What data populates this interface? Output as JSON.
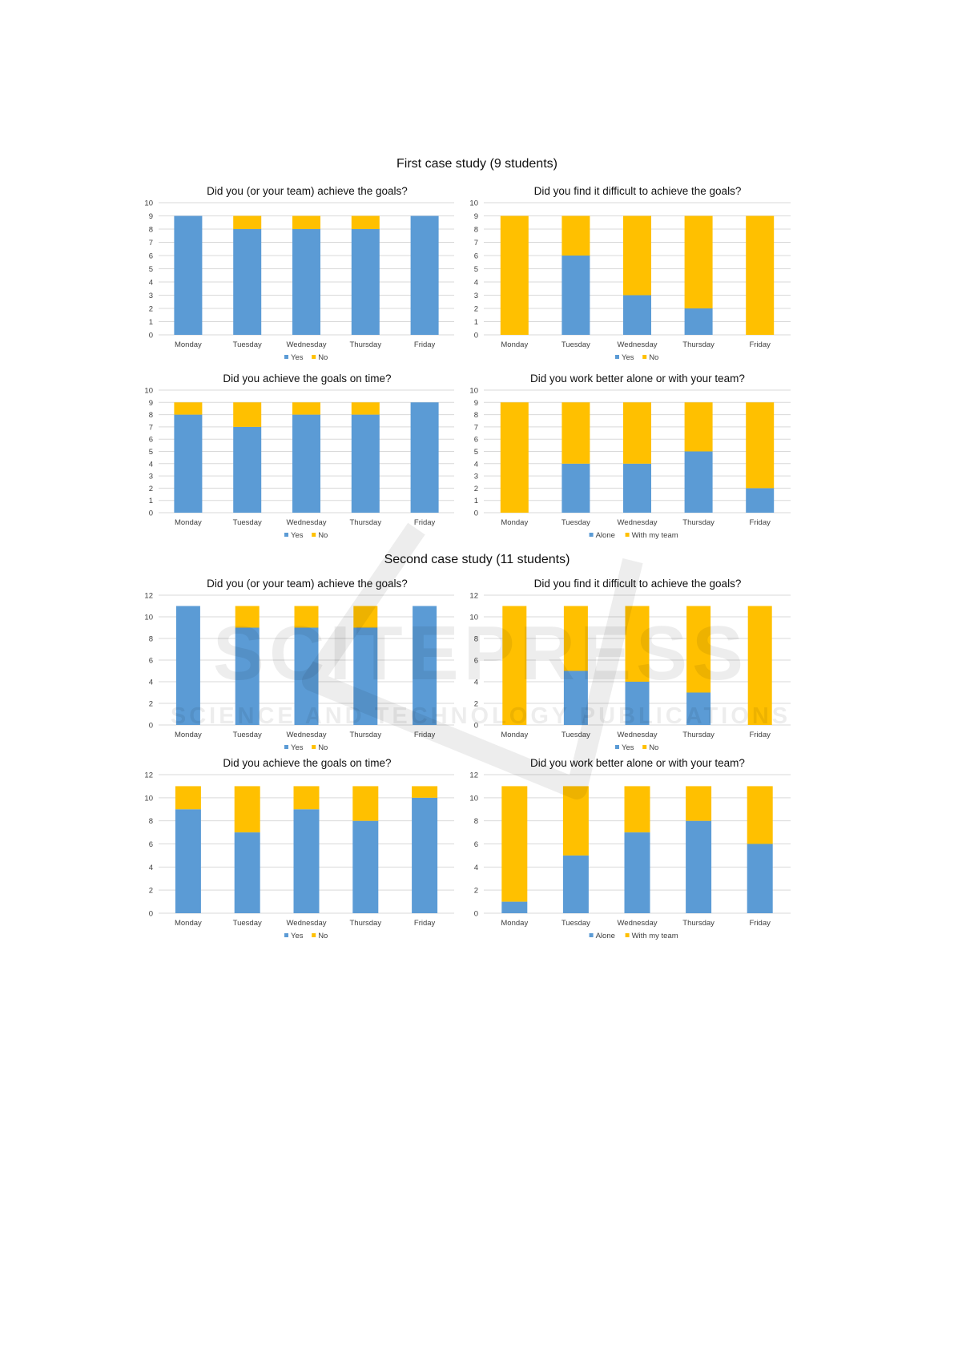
{
  "sections": [
    {
      "title": "First case study (9 students)"
    },
    {
      "title": "Second case study (11 students)"
    }
  ],
  "watermark": {
    "main": "SCITEPRESS",
    "sub": "SCIENCE AND TECHNOLOGY PUBLICATIONS"
  },
  "colors": {
    "yes": "#5B9BD5",
    "no": "#FFC000",
    "grid": "#D9D9D9",
    "axis_text": "#404040"
  },
  "chart_data": [
    {
      "type": "bar",
      "stacked": true,
      "title": "Did you (or your team) achieve the goals?",
      "categories": [
        "Monday",
        "Tuesday",
        "Wednesday",
        "Thursday",
        "Friday"
      ],
      "ylim": [
        0,
        10
      ],
      "yticks": [
        0,
        1,
        2,
        3,
        4,
        5,
        6,
        7,
        8,
        9,
        10
      ],
      "grid": true,
      "legend": "bottom",
      "series": [
        {
          "name": "Yes",
          "color": "#5B9BD5",
          "values": [
            9,
            8,
            8,
            8,
            9
          ]
        },
        {
          "name": "No",
          "color": "#FFC000",
          "values": [
            0,
            1,
            1,
            1,
            0
          ]
        }
      ]
    },
    {
      "type": "bar",
      "stacked": true,
      "title": "Did you find it difficult to achieve the goals?",
      "categories": [
        "Monday",
        "Tuesday",
        "Wednesday",
        "Thursday",
        "Friday"
      ],
      "ylim": [
        0,
        10
      ],
      "yticks": [
        0,
        1,
        2,
        3,
        4,
        5,
        6,
        7,
        8,
        9,
        10
      ],
      "grid": true,
      "legend": "bottom",
      "series": [
        {
          "name": "Yes",
          "color": "#5B9BD5",
          "values": [
            0,
            6,
            3,
            2,
            0
          ]
        },
        {
          "name": "No",
          "color": "#FFC000",
          "values": [
            9,
            3,
            6,
            7,
            9
          ]
        }
      ]
    },
    {
      "type": "bar",
      "stacked": true,
      "title": "Did you achieve the goals on time?",
      "categories": [
        "Monday",
        "Tuesday",
        "Wednesday",
        "Thursday",
        "Friday"
      ],
      "ylim": [
        0,
        10
      ],
      "yticks": [
        0,
        1,
        2,
        3,
        4,
        5,
        6,
        7,
        8,
        9,
        10
      ],
      "grid": true,
      "legend": "bottom",
      "series": [
        {
          "name": "Yes",
          "color": "#5B9BD5",
          "values": [
            8,
            7,
            8,
            8,
            9
          ]
        },
        {
          "name": "No",
          "color": "#FFC000",
          "values": [
            1,
            2,
            1,
            1,
            0
          ]
        }
      ]
    },
    {
      "type": "bar",
      "stacked": true,
      "title": "Did you work better alone or with your team?",
      "categories": [
        "Monday",
        "Tuesday",
        "Wednesday",
        "Thursday",
        "Friday"
      ],
      "ylim": [
        0,
        10
      ],
      "yticks": [
        0,
        1,
        2,
        3,
        4,
        5,
        6,
        7,
        8,
        9,
        10
      ],
      "grid": true,
      "legend": "bottom",
      "series": [
        {
          "name": "Alone",
          "color": "#5B9BD5",
          "values": [
            0,
            4,
            4,
            5,
            2
          ]
        },
        {
          "name": "With my team",
          "color": "#FFC000",
          "values": [
            9,
            5,
            5,
            4,
            7
          ]
        }
      ]
    },
    {
      "type": "bar",
      "stacked": true,
      "title": "Did you (or your team) achieve the goals?",
      "categories": [
        "Monday",
        "Tuesday",
        "Wednesday",
        "Thursday",
        "Friday"
      ],
      "ylim": [
        0,
        12
      ],
      "yticks": [
        0,
        2,
        4,
        6,
        8,
        10,
        12
      ],
      "grid": true,
      "legend": "bottom",
      "series": [
        {
          "name": "Yes",
          "color": "#5B9BD5",
          "values": [
            11,
            9,
            9,
            9,
            11
          ]
        },
        {
          "name": "No",
          "color": "#FFC000",
          "values": [
            0,
            2,
            2,
            2,
            0
          ]
        }
      ]
    },
    {
      "type": "bar",
      "stacked": true,
      "title": "Did you find it difficult to achieve the goals?",
      "categories": [
        "Monday",
        "Tuesday",
        "Wednesday",
        "Thursday",
        "Friday"
      ],
      "ylim": [
        0,
        12
      ],
      "yticks": [
        0,
        2,
        4,
        6,
        8,
        10,
        12
      ],
      "grid": true,
      "legend": "bottom",
      "series": [
        {
          "name": "Yes",
          "color": "#5B9BD5",
          "values": [
            0,
            5,
            4,
            3,
            0
          ]
        },
        {
          "name": "No",
          "color": "#FFC000",
          "values": [
            11,
            6,
            7,
            8,
            11
          ]
        }
      ]
    },
    {
      "type": "bar",
      "stacked": true,
      "title": "Did you achieve the goals on time?",
      "categories": [
        "Monday",
        "Tuesday",
        "Wednesday",
        "Thursday",
        "Friday"
      ],
      "ylim": [
        0,
        12
      ],
      "yticks": [
        0,
        2,
        4,
        6,
        8,
        10,
        12
      ],
      "grid": true,
      "legend": "bottom",
      "series": [
        {
          "name": "Yes",
          "color": "#5B9BD5",
          "values": [
            9,
            7,
            9,
            8,
            10
          ]
        },
        {
          "name": "No",
          "color": "#FFC000",
          "values": [
            2,
            4,
            2,
            3,
            1
          ]
        }
      ]
    },
    {
      "type": "bar",
      "stacked": true,
      "title": "Did you work better alone or with your team?",
      "categories": [
        "Monday",
        "Tuesday",
        "Wednesday",
        "Thursday",
        "Friday"
      ],
      "ylim": [
        0,
        12
      ],
      "yticks": [
        0,
        2,
        4,
        6,
        8,
        10,
        12
      ],
      "grid": true,
      "legend": "bottom",
      "series": [
        {
          "name": "Alone",
          "color": "#5B9BD5",
          "values": [
            1,
            5,
            7,
            8,
            6
          ]
        },
        {
          "name": "With my team",
          "color": "#FFC000",
          "values": [
            10,
            6,
            4,
            3,
            5
          ]
        }
      ]
    }
  ]
}
